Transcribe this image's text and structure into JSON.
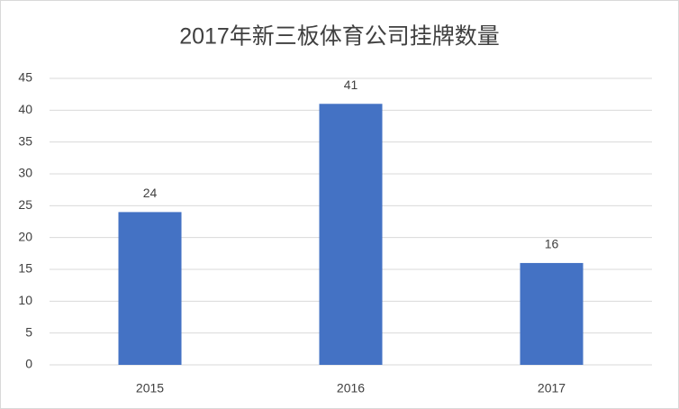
{
  "chart_data": {
    "type": "bar",
    "title": "2017年新三板体育公司挂牌数量",
    "categories": [
      "2015",
      "2016",
      "2017"
    ],
    "values": [
      24,
      41,
      16
    ],
    "color": "#4472c4",
    "ylim": [
      0,
      45
    ],
    "yticks": [
      0,
      5,
      10,
      15,
      20,
      25,
      30,
      35,
      40,
      45
    ],
    "grid": true,
    "data_labels": true
  }
}
